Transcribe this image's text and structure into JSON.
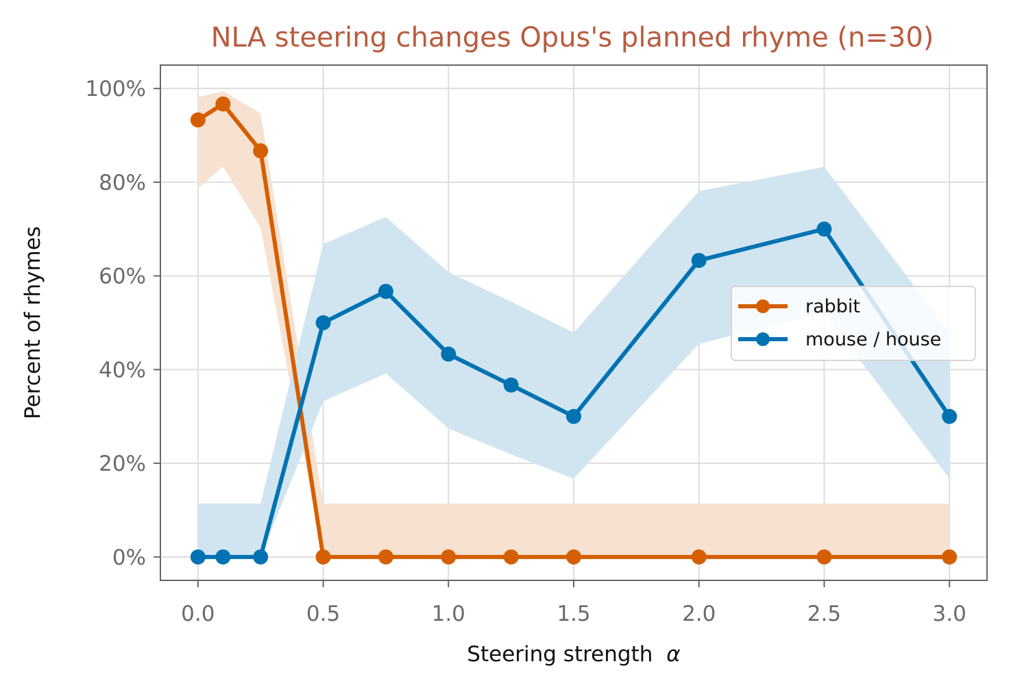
{
  "chart_data": {
    "type": "line",
    "title": "NLA steering changes Opus's planned rhyme (n=30)",
    "xlabel": "Steering strength",
    "xlabel_symbol": "α",
    "ylabel": "Percent of rhymes",
    "xlim": [
      -0.15,
      3.15
    ],
    "ylim": [
      -5,
      105
    ],
    "xticks": [
      0.0,
      0.5,
      1.0,
      1.5,
      2.0,
      2.5,
      3.0
    ],
    "xtick_labels": [
      "0.0",
      "0.5",
      "1.0",
      "1.5",
      "2.0",
      "2.5",
      "3.0"
    ],
    "yticks": [
      0,
      20,
      40,
      60,
      80,
      100
    ],
    "ytick_labels": [
      "0%",
      "20%",
      "40%",
      "60%",
      "80%",
      "100%"
    ],
    "grid": true,
    "legend_position": "center-right",
    "x": [
      0.0,
      0.1,
      0.25,
      0.5,
      0.75,
      1.0,
      1.25,
      1.5,
      2.0,
      2.5,
      3.0
    ],
    "series": [
      {
        "name": "rabbit",
        "color": "#d55e00",
        "band_color": "#f7e1d0",
        "values": [
          93.3,
          96.7,
          86.7,
          0,
          0,
          0,
          0,
          0,
          0,
          0,
          0
        ],
        "lower": [
          78.7,
          83.3,
          70.3,
          0,
          0,
          0,
          0,
          0,
          0,
          0,
          0
        ],
        "upper": [
          98.2,
          99.4,
          94.7,
          11.4,
          11.4,
          11.4,
          11.4,
          11.4,
          11.4,
          11.4,
          11.4
        ]
      },
      {
        "name": "mouse / house",
        "color": "#0072b2",
        "band_color": "#d1e5f1",
        "values": [
          0,
          0,
          0,
          50.0,
          56.7,
          43.3,
          36.7,
          30.0,
          63.3,
          70.0,
          30.0
        ],
        "lower": [
          0,
          0,
          0,
          33.2,
          39.2,
          27.4,
          21.9,
          16.7,
          45.5,
          52.1,
          16.7
        ],
        "upper": [
          11.4,
          11.4,
          11.4,
          66.8,
          72.6,
          60.8,
          54.5,
          47.9,
          78.1,
          83.3,
          47.9
        ]
      }
    ]
  }
}
